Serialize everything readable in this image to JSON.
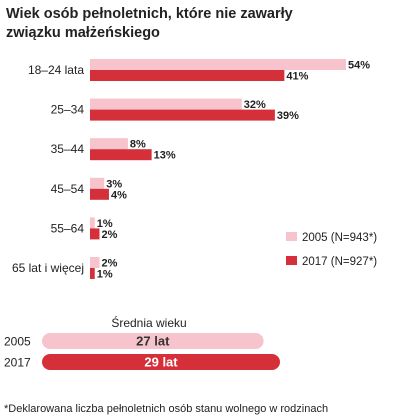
{
  "chart_data": {
    "type": "bar",
    "orientation": "horizontal",
    "title_lines": [
      "Wiek osób pełnoletnich, które nie zawarły",
      "związku małżeńskiego"
    ],
    "categories": [
      "18–24 lata",
      "25–34",
      "35–44",
      "45–54",
      "55–64",
      "65 lat i więcej"
    ],
    "unit": "%",
    "xlim": [
      0,
      54
    ],
    "grid": false,
    "legend_position": "right",
    "series": [
      {
        "name": "2005 (N=943*)",
        "color": "#f7c3cc",
        "values": [
          54,
          32,
          8,
          3,
          1,
          2
        ]
      },
      {
        "name": "2017 (N=927*)",
        "color": "#d5303a",
        "values": [
          41,
          39,
          13,
          4,
          2,
          1
        ]
      }
    ]
  },
  "average": {
    "title": "Średnia wieku",
    "unit": "lat",
    "xlim": [
      0,
      29
    ],
    "rows": [
      {
        "year": "2005",
        "value": 27,
        "color": "#f7c3cc",
        "text_color": "#333333"
      },
      {
        "year": "2017",
        "value": 29,
        "color": "#d5303a",
        "text_color": "#ffffff"
      }
    ]
  },
  "footnote": "*Deklarowana liczba pełnoletnich osób stanu wolnego w rodzinach"
}
